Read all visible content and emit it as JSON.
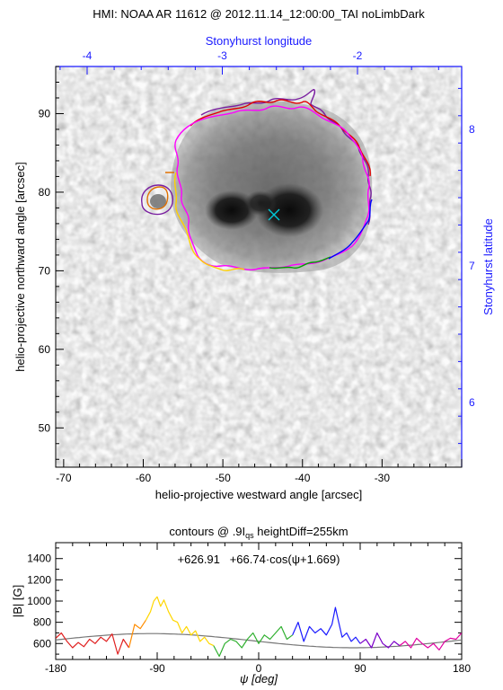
{
  "top_panel": {
    "title": "HMI: NOAA AR 11612 @ 2012.11.14_12:00:00_TAI noLimbDark",
    "xlabel": "helio-projective westward angle [arcsec]",
    "ylabel": "helio-projective northward angle [arcsec]",
    "top_axis_label": "Stonyhurst longitude",
    "right_axis_label": "Stonyhurst latitude",
    "axis_color_secondary": "#1a1aff",
    "x_ticks": [
      "-70",
      "-60",
      "-50",
      "-40",
      "-30"
    ],
    "y_ticks": [
      "50",
      "60",
      "70",
      "80",
      "90"
    ],
    "top_ticks": [
      "-4",
      "-3",
      "-2"
    ],
    "right_ticks": [
      "6",
      "7",
      "8"
    ],
    "marker": "x",
    "marker_color": "#00c8d8"
  },
  "bottom_panel": {
    "title_prefix": "contours @ .9I",
    "title_sub": "qs",
    "title_suffix": " heightDiff=255km",
    "fit_label": "+626.91   +66.74·cos(ψ+1.669)",
    "xlabel": "ψ [deg]",
    "ylabel": "|B| [G]",
    "x_ticks": [
      "-180",
      "-90",
      "0",
      "90",
      "180"
    ],
    "y_ticks": [
      "600",
      "800",
      "1000",
      "1200",
      "1400"
    ]
  },
  "chart_data": [
    {
      "type": "heatmap",
      "title": "HMI: NOAA AR 11612 @ 2012.11.14_12:00:00_TAI noLimbDark",
      "xlabel": "helio-projective westward angle [arcsec]",
      "ylabel": "helio-projective northward angle [arcsec]",
      "xlim": [
        -71,
        -20
      ],
      "ylim": [
        45,
        96
      ],
      "top_axis": {
        "label": "Stonyhurst longitude",
        "ticks": [
          -4,
          -3,
          -2
        ]
      },
      "right_axis": {
        "label": "Stonyhurst latitude",
        "ticks": [
          6,
          7,
          8
        ]
      },
      "sunspot_center": [
        -44,
        76.8
      ],
      "contour_colors": [
        "#8a2be2",
        "#e00000",
        "#ff00ff",
        "#ffd000",
        "#00a000",
        "#0000ff",
        "#e07000"
      ]
    },
    {
      "type": "line",
      "title": "contours @ .9I_qs heightDiff=255km",
      "xlabel": "ψ [deg]",
      "ylabel": "|B| [G]",
      "xlim": [
        -180,
        180
      ],
      "ylim": [
        450,
        1550
      ],
      "fit": {
        "offset": 626.91,
        "amplitude": 66.74,
        "phase": 1.669,
        "label": "+626.91 +66.74·cos(ψ+1.669)"
      },
      "series": [
        {
          "color": "#e02020",
          "x": [
            -180,
            -175,
            -170,
            -165,
            -160,
            -155,
            -150,
            -145,
            -140,
            -135,
            -130,
            -125,
            -120,
            -115
          ],
          "y": [
            650,
            700,
            620,
            560,
            610,
            570,
            640,
            600,
            660,
            620,
            690,
            500,
            640,
            560
          ]
        },
        {
          "color": "#ff8c00",
          "x": [
            -115,
            -110,
            -105,
            -100
          ],
          "y": [
            560,
            780,
            740,
            820
          ]
        },
        {
          "color": "#ffd700",
          "x": [
            -100,
            -96,
            -93,
            -90,
            -87,
            -84,
            -80,
            -76,
            -72,
            -68,
            -64,
            -60,
            -56,
            -52,
            -48,
            -44,
            -40
          ],
          "y": [
            820,
            900,
            1000,
            1040,
            950,
            1010,
            900,
            820,
            800,
            700,
            760,
            680,
            720,
            620,
            660,
            600,
            580
          ]
        },
        {
          "color": "#30b030",
          "x": [
            -40,
            -35,
            -30,
            -25,
            -20,
            -15,
            -10,
            -5,
            0,
            5,
            10,
            15,
            20,
            25,
            30
          ],
          "y": [
            580,
            480,
            600,
            640,
            620,
            560,
            640,
            700,
            600,
            680,
            640,
            700,
            760,
            640,
            680
          ]
        },
        {
          "color": "#1a1aff",
          "x": [
            30,
            35,
            40,
            45,
            50,
            55,
            60,
            65,
            68,
            71,
            74,
            78,
            82,
            86,
            90
          ],
          "y": [
            680,
            800,
            620,
            760,
            700,
            740,
            680,
            780,
            940,
            800,
            660,
            700,
            620,
            660,
            600
          ]
        },
        {
          "color": "#7a00c8",
          "x": [
            90,
            95,
            100,
            105,
            110,
            115,
            120,
            125
          ],
          "y": [
            600,
            640,
            560,
            700,
            600,
            560,
            620,
            580
          ]
        },
        {
          "color": "#e000a0",
          "x": [
            125,
            130,
            135,
            140,
            145,
            150,
            155,
            160,
            165,
            170,
            175,
            180
          ],
          "y": [
            580,
            620,
            560,
            650,
            600,
            560,
            600,
            540,
            620,
            650,
            640,
            700
          ]
        }
      ]
    }
  ]
}
